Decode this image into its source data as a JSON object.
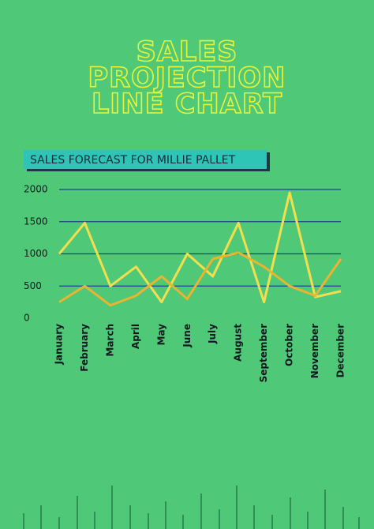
{
  "chart_data": {
    "type": "line",
    "title": [
      "SALES",
      "PROJECTION",
      "LINE CHART"
    ],
    "subtitle": "SALES FORECAST FOR MILLIE PALLET",
    "categories": [
      "January",
      "February",
      "March",
      "April",
      "May",
      "June",
      "July",
      "August",
      "September",
      "October",
      "November",
      "December"
    ],
    "series": [
      {
        "color": "#f3df4e",
        "values": [
          1000,
          1480,
          500,
          800,
          250,
          1000,
          650,
          1480,
          250,
          1950,
          330,
          420
        ]
      },
      {
        "color": "#e9b52e",
        "values": [
          250,
          500,
          200,
          350,
          650,
          300,
          920,
          1020,
          800,
          500,
          350,
          920
        ]
      }
    ],
    "ylim": [
      0,
      2000
    ],
    "yticks": [
      0,
      500,
      1000,
      1500,
      2000
    ],
    "grid": true,
    "grid_color": "#1f3f8f"
  }
}
